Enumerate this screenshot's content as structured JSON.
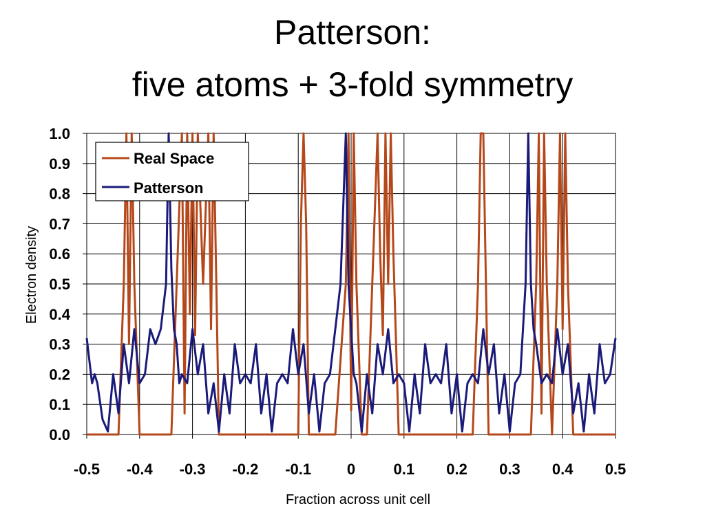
{
  "slide": {
    "title_line1": "Patterson:",
    "title_line2": "five atoms + 3-fold symmetry"
  },
  "chart_data": {
    "type": "line",
    "xlabel": "Fraction across unit cell",
    "ylabel": "Electron density",
    "xlim": [
      -0.5,
      0.5
    ],
    "ylim": [
      0.0,
      1.0
    ],
    "x_ticks": [
      "-0.5",
      "-0.4",
      "-0.3",
      "-0.2",
      "-0.1",
      "0",
      "0.1",
      "0.2",
      "0.3",
      "0.4",
      "0.5"
    ],
    "y_ticks": [
      "0.0",
      "0.1",
      "0.2",
      "0.3",
      "0.4",
      "0.5",
      "0.6",
      "0.7",
      "0.8",
      "0.9",
      "1.0"
    ],
    "grid": true,
    "legend_position": "top-left",
    "series": [
      {
        "name": "Real Space",
        "color": "#B5481A",
        "x": [
          -0.5,
          -0.44,
          -0.43,
          -0.425,
          -0.42,
          -0.415,
          -0.41,
          -0.4,
          -0.34,
          -0.33,
          -0.32,
          -0.315,
          -0.31,
          -0.305,
          -0.3,
          -0.295,
          -0.29,
          -0.28,
          -0.27,
          -0.265,
          -0.26,
          -0.255,
          -0.25,
          -0.24,
          -0.1,
          -0.095,
          -0.09,
          -0.085,
          -0.08,
          -0.03,
          -0.01,
          -0.005,
          0.0,
          0.005,
          0.01,
          0.02,
          0.03,
          0.04,
          0.05,
          0.055,
          0.06,
          0.065,
          0.07,
          0.075,
          0.08,
          0.085,
          0.09,
          0.1,
          0.23,
          0.24,
          0.245,
          0.25,
          0.255,
          0.26,
          0.27,
          0.34,
          0.35,
          0.355,
          0.36,
          0.365,
          0.37,
          0.38,
          0.39,
          0.395,
          0.4,
          0.405,
          0.41,
          0.42,
          0.43,
          0.5
        ],
        "values": [
          0.0,
          0.0,
          0.5,
          1.0,
          0.3,
          1.0,
          0.5,
          0.0,
          0.0,
          0.5,
          1.0,
          0.07,
          1.0,
          0.4,
          1.0,
          0.33,
          1.0,
          0.5,
          1.0,
          0.35,
          1.0,
          0.5,
          0.0,
          0.0,
          0.0,
          0.7,
          1.0,
          0.7,
          0.0,
          0.0,
          0.5,
          1.0,
          0.08,
          1.0,
          0.5,
          0.0,
          0.0,
          0.5,
          1.0,
          0.6,
          0.33,
          1.0,
          0.5,
          1.0,
          0.6,
          0.3,
          0.0,
          0.0,
          0.0,
          0.5,
          1.0,
          1.0,
          0.5,
          0.0,
          0.0,
          0.0,
          0.5,
          1.0,
          0.07,
          1.0,
          0.5,
          0.0,
          0.5,
          1.0,
          0.35,
          1.0,
          0.5,
          0.0,
          0.0,
          0.0
        ]
      },
      {
        "name": "Patterson",
        "color": "#1A1A7A",
        "x": [
          -0.5,
          -0.49,
          -0.485,
          -0.48,
          -0.47,
          -0.46,
          -0.45,
          -0.44,
          -0.43,
          -0.42,
          -0.41,
          -0.4,
          -0.39,
          -0.38,
          -0.37,
          -0.36,
          -0.35,
          -0.345,
          -0.34,
          -0.335,
          -0.33,
          -0.325,
          -0.32,
          -0.31,
          -0.3,
          -0.29,
          -0.28,
          -0.27,
          -0.26,
          -0.25,
          -0.24,
          -0.23,
          -0.22,
          -0.21,
          -0.2,
          -0.19,
          -0.18,
          -0.17,
          -0.16,
          -0.15,
          -0.14,
          -0.13,
          -0.12,
          -0.11,
          -0.1,
          -0.09,
          -0.08,
          -0.07,
          -0.06,
          -0.05,
          -0.04,
          -0.03,
          -0.02,
          -0.01,
          -0.005,
          0.0,
          0.005,
          0.01,
          0.02,
          0.03,
          0.04,
          0.05,
          0.06,
          0.07,
          0.08,
          0.09,
          0.1,
          0.11,
          0.12,
          0.13,
          0.14,
          0.15,
          0.16,
          0.17,
          0.18,
          0.19,
          0.2,
          0.21,
          0.22,
          0.23,
          0.24,
          0.25,
          0.26,
          0.27,
          0.28,
          0.29,
          0.3,
          0.31,
          0.32,
          0.325,
          0.33,
          0.335,
          0.34,
          0.345,
          0.35,
          0.36,
          0.37,
          0.38,
          0.39,
          0.4,
          0.41,
          0.42,
          0.43,
          0.44,
          0.45,
          0.46,
          0.47,
          0.48,
          0.49,
          0.5
        ],
        "values": [
          0.32,
          0.17,
          0.2,
          0.17,
          0.05,
          0.01,
          0.2,
          0.07,
          0.3,
          0.17,
          0.35,
          0.17,
          0.2,
          0.35,
          0.3,
          0.35,
          0.5,
          1.0,
          0.55,
          0.35,
          0.3,
          0.17,
          0.2,
          0.17,
          0.35,
          0.2,
          0.3,
          0.07,
          0.17,
          0.01,
          0.2,
          0.07,
          0.3,
          0.17,
          0.2,
          0.17,
          0.3,
          0.07,
          0.2,
          0.01,
          0.17,
          0.2,
          0.17,
          0.35,
          0.2,
          0.3,
          0.07,
          0.2,
          0.01,
          0.17,
          0.2,
          0.35,
          0.5,
          1.0,
          0.5,
          0.35,
          0.2,
          0.17,
          0.01,
          0.2,
          0.07,
          0.3,
          0.2,
          0.35,
          0.17,
          0.2,
          0.17,
          0.01,
          0.2,
          0.07,
          0.3,
          0.17,
          0.2,
          0.17,
          0.3,
          0.07,
          0.2,
          0.01,
          0.17,
          0.2,
          0.17,
          0.35,
          0.2,
          0.3,
          0.07,
          0.2,
          0.01,
          0.17,
          0.2,
          0.35,
          0.5,
          1.0,
          0.5,
          0.35,
          0.3,
          0.17,
          0.2,
          0.17,
          0.35,
          0.2,
          0.3,
          0.07,
          0.17,
          0.01,
          0.2,
          0.07,
          0.3,
          0.17,
          0.2,
          0.32
        ]
      }
    ]
  }
}
